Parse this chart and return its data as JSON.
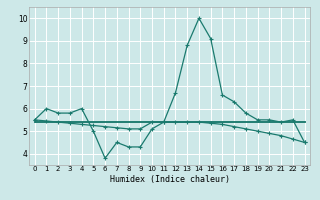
{
  "xlabel": "Humidex (Indice chaleur)",
  "bg_color": "#cde8e8",
  "grid_color": "#ffffff",
  "line_color": "#1a7a6e",
  "xlim": [
    -0.5,
    23.5
  ],
  "ylim": [
    3.5,
    10.5
  ],
  "yticks": [
    4,
    5,
    6,
    7,
    8,
    9,
    10
  ],
  "xticks": [
    0,
    1,
    2,
    3,
    4,
    5,
    6,
    7,
    8,
    9,
    10,
    11,
    12,
    13,
    14,
    15,
    16,
    17,
    18,
    19,
    20,
    21,
    22,
    23
  ],
  "line1_x": [
    0,
    1,
    2,
    3,
    4,
    5,
    6,
    7,
    8,
    9,
    10,
    11,
    12,
    13,
    14,
    15,
    16,
    17,
    18,
    19,
    20,
    21,
    22,
    23
  ],
  "line1_y": [
    5.5,
    6.0,
    5.8,
    5.8,
    6.0,
    5.0,
    3.8,
    4.5,
    4.3,
    4.3,
    5.1,
    5.4,
    6.7,
    8.8,
    10.0,
    9.1,
    6.6,
    6.3,
    5.8,
    5.5,
    5.5,
    5.4,
    5.5,
    4.5
  ],
  "line2_x": [
    0,
    1,
    2,
    3,
    4,
    5,
    6,
    7,
    8,
    9,
    10,
    11,
    12,
    13,
    14,
    15,
    16,
    17,
    18,
    19,
    20,
    21,
    22,
    23
  ],
  "line2_y": [
    5.4,
    5.4,
    5.4,
    5.4,
    5.4,
    5.4,
    5.4,
    5.4,
    5.4,
    5.4,
    5.4,
    5.4,
    5.4,
    5.4,
    5.4,
    5.4,
    5.4,
    5.4,
    5.4,
    5.4,
    5.4,
    5.4,
    5.4,
    5.4
  ],
  "line3_x": [
    0,
    1,
    2,
    3,
    4,
    5,
    6,
    7,
    8,
    9,
    10,
    11,
    12,
    13,
    14,
    15,
    16,
    17,
    18,
    19,
    20,
    21,
    22,
    23
  ],
  "line3_y": [
    5.5,
    5.45,
    5.4,
    5.35,
    5.3,
    5.25,
    5.2,
    5.15,
    5.1,
    5.1,
    5.4,
    5.4,
    5.4,
    5.4,
    5.4,
    5.35,
    5.3,
    5.2,
    5.1,
    5.0,
    4.9,
    4.8,
    4.65,
    4.5
  ]
}
